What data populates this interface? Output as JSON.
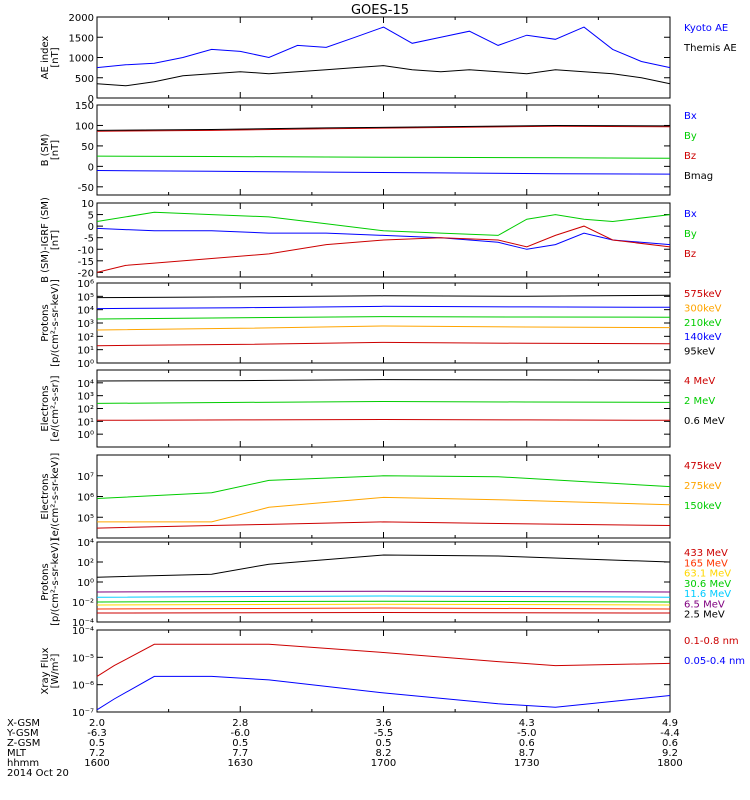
{
  "title": "GOES-15",
  "chart_data": [
    {
      "type": "line",
      "ylabel": [
        "AE index",
        "[nT]"
      ],
      "yscale": "linear",
      "ylim": [
        0,
        2000
      ],
      "yticks": [
        0,
        500,
        1000,
        1500,
        2000
      ],
      "series": [
        {
          "name": "Kyoto AE",
          "color": "#0000ff",
          "x": [
            0,
            0.05,
            0.1,
            0.15,
            0.2,
            0.25,
            0.3,
            0.35,
            0.4,
            0.45,
            0.5,
            0.55,
            0.6,
            0.65,
            0.7,
            0.75,
            0.8,
            0.85,
            0.9,
            0.95,
            1
          ],
          "y": [
            750,
            820,
            860,
            1000,
            1200,
            1150,
            1000,
            1300,
            1250,
            1500,
            1750,
            1350,
            1500,
            1650,
            1300,
            1550,
            1450,
            1750,
            1200,
            900,
            750
          ]
        },
        {
          "name": "Themis AE",
          "color": "#000000",
          "x": [
            0,
            0.05,
            0.1,
            0.15,
            0.2,
            0.25,
            0.3,
            0.35,
            0.4,
            0.45,
            0.5,
            0.55,
            0.6,
            0.65,
            0.7,
            0.75,
            0.8,
            0.85,
            0.9,
            0.95,
            1
          ],
          "y": [
            350,
            300,
            400,
            550,
            600,
            650,
            600,
            650,
            700,
            750,
            800,
            700,
            650,
            700,
            650,
            600,
            700,
            650,
            600,
            500,
            350
          ]
        }
      ]
    },
    {
      "type": "line",
      "ylabel": [
        "B (SM)",
        "[nT]"
      ],
      "yscale": "linear",
      "ylim": [
        -70,
        150
      ],
      "yticks": [
        -50,
        0,
        50,
        100,
        150
      ],
      "series": [
        {
          "name": "Bx",
          "color": "#0000ff",
          "x": [
            0,
            0.2,
            0.4,
            0.6,
            0.8,
            1
          ],
          "y": [
            -10,
            -12,
            -14,
            -16,
            -18,
            -19
          ]
        },
        {
          "name": "By",
          "color": "#00cc00",
          "x": [
            0,
            0.2,
            0.4,
            0.6,
            0.8,
            1
          ],
          "y": [
            25,
            24,
            23,
            22,
            21,
            20
          ]
        },
        {
          "name": "Bz",
          "color": "#cc0000",
          "x": [
            0,
            0.2,
            0.4,
            0.6,
            0.8,
            1
          ],
          "y": [
            86,
            88,
            92,
            95,
            98,
            97
          ]
        },
        {
          "name": "Bmag",
          "color": "#000000",
          "x": [
            0,
            0.2,
            0.4,
            0.6,
            0.8,
            1
          ],
          "y": [
            88,
            90,
            94,
            97,
            100,
            99
          ]
        }
      ]
    },
    {
      "type": "line",
      "ylabel": [
        "B (SM)-IGRF (SM)",
        "[nT]"
      ],
      "yscale": "linear",
      "ylim": [
        -22,
        10
      ],
      "yticks": [
        -20,
        -15,
        -10,
        -5,
        0,
        5,
        10
      ],
      "series": [
        {
          "name": "Bx",
          "color": "#0000ff",
          "x": [
            0,
            0.1,
            0.2,
            0.3,
            0.4,
            0.5,
            0.6,
            0.7,
            0.75,
            0.8,
            0.85,
            0.9,
            1
          ],
          "y": [
            -1,
            -2,
            -2,
            -3,
            -3,
            -4,
            -5,
            -7,
            -10,
            -8,
            -3,
            -6,
            -8
          ]
        },
        {
          "name": "By",
          "color": "#00cc00",
          "x": [
            0,
            0.1,
            0.2,
            0.3,
            0.4,
            0.5,
            0.6,
            0.7,
            0.75,
            0.8,
            0.85,
            0.9,
            1
          ],
          "y": [
            2,
            6,
            5,
            4,
            1,
            -2,
            -3,
            -4,
            3,
            5,
            3,
            2,
            5
          ]
        },
        {
          "name": "Bz",
          "color": "#cc0000",
          "x": [
            0,
            0.05,
            0.1,
            0.2,
            0.3,
            0.4,
            0.5,
            0.6,
            0.7,
            0.75,
            0.8,
            0.85,
            0.9,
            1
          ],
          "y": [
            -20,
            -17,
            -16,
            -14,
            -12,
            -8,
            -6,
            -5,
            -6,
            -9,
            -4,
            0,
            -6,
            -9
          ]
        }
      ]
    },
    {
      "type": "line",
      "ylabel": [
        "Protons",
        "[p/(cm²-s-sr-keV)]"
      ],
      "yscale": "log",
      "ylim": [
        1,
        1000000
      ],
      "ytick_labels": [
        "10⁰",
        "10¹",
        "10²",
        "10³",
        "10⁴",
        "10⁵",
        "10⁶"
      ],
      "series": [
        {
          "name": "575keV",
          "color": "#cc0000",
          "x": [
            0,
            0.25,
            0.5,
            0.75,
            1
          ],
          "y": [
            20,
            25,
            35,
            30,
            28
          ]
        },
        {
          "name": "300keV",
          "color": "#ffa500",
          "x": [
            0,
            0.25,
            0.5,
            0.75,
            1
          ],
          "y": [
            300,
            400,
            600,
            500,
            450
          ]
        },
        {
          "name": "210keV",
          "color": "#00cc00",
          "x": [
            0,
            0.25,
            0.5,
            0.75,
            1
          ],
          "y": [
            2000,
            2500,
            3000,
            2800,
            2700
          ]
        },
        {
          "name": "140keV",
          "color": "#0000ff",
          "x": [
            0,
            0.25,
            0.5,
            0.75,
            1
          ],
          "y": [
            12000,
            14000,
            18000,
            16000,
            15000
          ]
        },
        {
          "name": "95keV",
          "color": "#000000",
          "x": [
            0,
            0.25,
            0.5,
            0.75,
            1
          ],
          "y": [
            80000,
            90000,
            110000,
            100000,
            120000
          ]
        }
      ]
    },
    {
      "type": "line",
      "ylabel": [
        "Electrons",
        "[e/(cm²-s-sr)]"
      ],
      "yscale": "log",
      "ylim": [
        0.1,
        100000
      ],
      "ytick_labels": [
        "10⁰",
        "10¹",
        "10²",
        "10³",
        "10⁴"
      ],
      "series": [
        {
          "name": "4 MeV",
          "color": "#cc0000",
          "x": [
            0,
            0.25,
            0.5,
            0.75,
            1
          ],
          "y": [
            12,
            13,
            14,
            13,
            12
          ]
        },
        {
          "name": "2 MeV",
          "color": "#00cc00",
          "x": [
            0,
            0.25,
            0.5,
            0.75,
            1
          ],
          "y": [
            250,
            300,
            350,
            320,
            300
          ]
        },
        {
          "name": "0.6 MeV",
          "color": "#000000",
          "x": [
            0,
            0.25,
            0.5,
            0.75,
            1
          ],
          "y": [
            14000,
            15000,
            18000,
            17000,
            16000
          ]
        }
      ]
    },
    {
      "type": "line",
      "ylabel": [
        "Electrons",
        "[e/(cm²-s-sr-keV)]"
      ],
      "yscale": "log",
      "ylim": [
        10000,
        100000000
      ],
      "ytick_labels": [
        "10⁵",
        "10⁶",
        "10⁷"
      ],
      "series": [
        {
          "name": "475keV",
          "color": "#cc0000",
          "x": [
            0,
            0.2,
            0.3,
            0.5,
            0.7,
            1
          ],
          "y": [
            30000,
            40000,
            45000,
            60000,
            50000,
            40000
          ]
        },
        {
          "name": "275keV",
          "color": "#ffa500",
          "x": [
            0,
            0.2,
            0.3,
            0.5,
            0.7,
            1
          ],
          "y": [
            60000,
            60000,
            300000,
            900000,
            700000,
            400000
          ]
        },
        {
          "name": "150keV",
          "color": "#00cc00",
          "x": [
            0,
            0.2,
            0.3,
            0.5,
            0.7,
            1
          ],
          "y": [
            800000,
            1500000,
            6000000,
            10000000,
            9000000,
            3000000
          ]
        }
      ]
    },
    {
      "type": "line",
      "ylabel": [
        "Protons",
        "[p/(cm²-s-sr-keV)]"
      ],
      "yscale": "log",
      "ylim": [
        0.0001,
        10000
      ],
      "ytick_labels": [
        "10⁻⁴",
        "10⁻²",
        "10⁰",
        "10²",
        "10⁴"
      ],
      "series": [
        {
          "name": "433 MeV",
          "color": "#cc0000",
          "x": [
            0,
            0.5,
            1
          ],
          "y": [
            0.0008,
            0.0009,
            0.0008
          ]
        },
        {
          "name": "165 MeV",
          "color": "#ff3300",
          "x": [
            0,
            0.5,
            1
          ],
          "y": [
            0.002,
            0.0025,
            0.002
          ]
        },
        {
          "name": "63.1 MeV",
          "color": "#ffd700",
          "x": [
            0,
            0.5,
            1
          ],
          "y": [
            0.005,
            0.006,
            0.005
          ]
        },
        {
          "name": "30.6 MeV",
          "color": "#00cc00",
          "x": [
            0,
            0.5,
            1
          ],
          "y": [
            0.01,
            0.012,
            0.01
          ]
        },
        {
          "name": "11.6 MeV",
          "color": "#00ccff",
          "x": [
            0,
            0.5,
            1
          ],
          "y": [
            0.03,
            0.04,
            0.03
          ]
        },
        {
          "name": "6.5 MeV",
          "color": "#800080",
          "x": [
            0,
            0.5,
            1
          ],
          "y": [
            0.1,
            0.12,
            0.1
          ]
        },
        {
          "name": "2.5 MeV",
          "color": "#000000",
          "x": [
            0,
            0.2,
            0.3,
            0.5,
            0.7,
            1
          ],
          "y": [
            3,
            6,
            60,
            500,
            400,
            100
          ]
        }
      ]
    },
    {
      "type": "line",
      "ylabel": [
        "Xray Flux",
        "[W/m²]"
      ],
      "yscale": "log",
      "ylim": [
        1e-07,
        0.0001
      ],
      "ytick_labels": [
        "10⁻⁷",
        "10⁻⁶",
        "10⁻⁵",
        "10⁻⁴"
      ],
      "series": [
        {
          "name": "0.1-0.8 nm",
          "color": "#cc0000",
          "x": [
            0,
            0.03,
            0.1,
            0.2,
            0.3,
            0.5,
            0.7,
            0.8,
            1
          ],
          "y": [
            2e-06,
            5e-06,
            3e-05,
            3e-05,
            3e-05,
            1.5e-05,
            7e-06,
            5e-06,
            6e-06
          ]
        },
        {
          "name": "0.05-0.4 nm",
          "color": "#0000ff",
          "x": [
            0,
            0.03,
            0.1,
            0.2,
            0.3,
            0.5,
            0.7,
            0.8,
            1
          ],
          "y": [
            1.2e-07,
            3e-07,
            2e-06,
            2e-06,
            1.5e-06,
            5e-07,
            2e-07,
            1.5e-07,
            4e-07
          ]
        }
      ]
    }
  ],
  "footer": {
    "row_labels": [
      "X-GSM",
      "Y-GSM",
      "Z-GSM",
      "MLT",
      "hhmm"
    ],
    "columns": [
      [
        "2.0",
        "-6.3",
        "0.5",
        "7.2",
        "1600"
      ],
      [
        "2.8",
        "-6.0",
        "0.5",
        "7.7",
        "1630"
      ],
      [
        "3.6",
        "-5.5",
        "0.5",
        "8.2",
        "1700"
      ],
      [
        "4.3",
        "-5.0",
        "0.6",
        "8.7",
        "1730"
      ],
      [
        "4.9",
        "-4.4",
        "0.6",
        "9.2",
        "1800"
      ]
    ],
    "date": "2014 Oct 20"
  }
}
